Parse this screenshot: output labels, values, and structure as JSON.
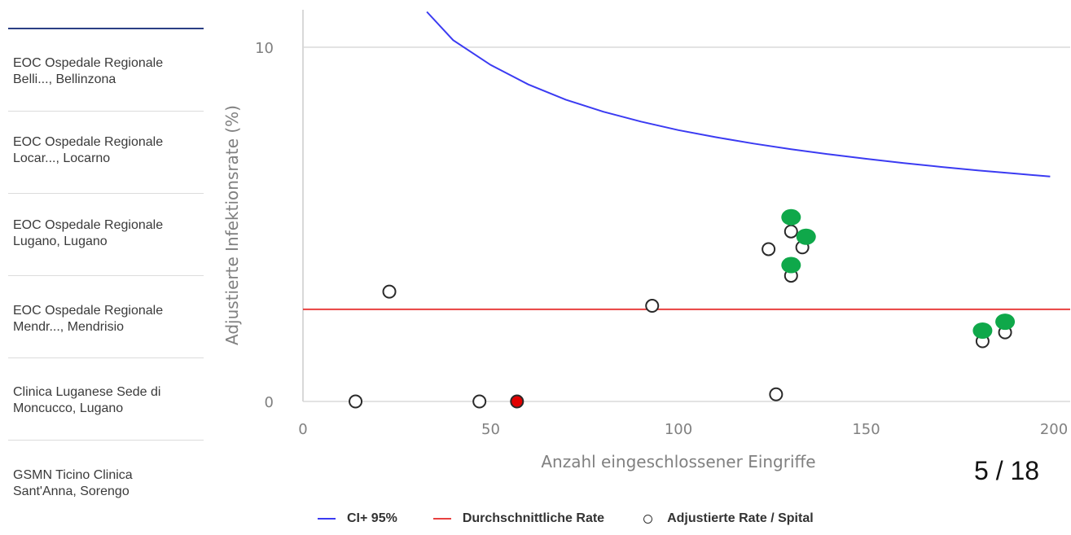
{
  "sidebar": {
    "items": [
      {
        "label": "EOC Ospedale Regionale\nBelli..., Bellinzona"
      },
      {
        "label": "EOC Ospedale Regionale\nLocar..., Locarno"
      },
      {
        "label": "EOC Ospedale Regionale\nLugano, Lugano"
      },
      {
        "label": "EOC Ospedale Regionale\nMendr..., Mendrisio"
      },
      {
        "label": "Clinica Luganese Sede di\nMoncucco, Lugano"
      },
      {
        "label": "GSMN Ticino Clinica\nSant'Anna, Sorengo"
      }
    ]
  },
  "page_counter": "5 / 18",
  "colors": {
    "ci_line": "#3b3bf2",
    "avg_line": "#e8403f",
    "highlight_red": "#e10000",
    "highlight_green": "#0fa84a",
    "axis_text": "#808080"
  },
  "chart_data": {
    "type": "scatter",
    "xlabel": "Anzahl eingeschlossener Eingriffe",
    "ylabel": "Adjustierte Infektionsrate (%)",
    "xlim": [
      0,
      200
    ],
    "ylim": [
      0,
      10
    ],
    "x_ticks": [
      0,
      50,
      100,
      150,
      200
    ],
    "y_ticks": [
      0,
      10
    ],
    "grid": "horizontal",
    "legend_position": "bottom",
    "legend": [
      "CI+ 95%",
      "Durchschnittliche Rate",
      "Adjustierte Rate / Spital"
    ],
    "series": [
      {
        "name": "CI+ 95%",
        "kind": "line",
        "x": [
          33,
          40,
          50,
          60,
          70,
          80,
          90,
          100,
          110,
          120,
          130,
          140,
          150,
          160,
          170,
          180,
          190,
          199
        ],
        "y": [
          11.0,
          10.2,
          9.5,
          8.95,
          8.52,
          8.18,
          7.9,
          7.66,
          7.46,
          7.28,
          7.12,
          6.98,
          6.85,
          6.73,
          6.62,
          6.52,
          6.43,
          6.35
        ]
      },
      {
        "name": "Durchschnittliche Rate",
        "kind": "hline",
        "y": 2.6
      },
      {
        "name": "Adjustierte Rate / Spital",
        "kind": "points",
        "points": [
          {
            "x": 14,
            "y": 0.0
          },
          {
            "x": 23,
            "y": 3.1
          },
          {
            "x": 47,
            "y": 0.0
          },
          {
            "x": 57,
            "y": 0.0,
            "highlight": "red"
          },
          {
            "x": 93,
            "y": 2.7
          },
          {
            "x": 124,
            "y": 4.3
          },
          {
            "x": 126,
            "y": 0.2
          },
          {
            "x": 130,
            "y": 4.8
          },
          {
            "x": 130,
            "y": 3.55
          },
          {
            "x": 133,
            "y": 4.35
          },
          {
            "x": 181,
            "y": 1.7
          },
          {
            "x": 187,
            "y": 1.95
          }
        ]
      },
      {
        "name": "",
        "kind": "markers",
        "points": [
          {
            "x": 130,
            "y": 5.2
          },
          {
            "x": 134,
            "y": 4.65
          },
          {
            "x": 130,
            "y": 3.85
          },
          {
            "x": 181,
            "y": 2.0
          },
          {
            "x": 187,
            "y": 2.25
          }
        ]
      }
    ]
  }
}
